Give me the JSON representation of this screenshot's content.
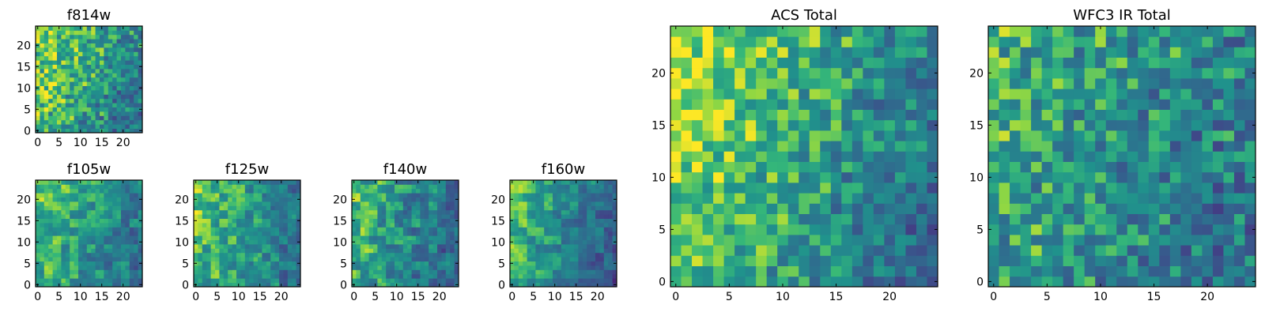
{
  "chart_data": [
    {
      "type": "heatmap",
      "title": "f814w",
      "x_ticks": [
        0,
        5,
        10,
        15,
        20
      ],
      "y_ticks": [
        0,
        5,
        10,
        15,
        20
      ],
      "xlim": [
        -0.5,
        24.5
      ],
      "ylim": [
        -0.5,
        24.5
      ],
      "grid_size": [
        25,
        25
      ],
      "colormap": "viridis",
      "value_range": [
        0,
        1
      ],
      "pattern": {
        "base": 0.78,
        "gx": -0.35,
        "gy": 0.12,
        "noise": 0.42,
        "seed": 11,
        "blocks": 1
      }
    },
    {
      "type": "heatmap",
      "title": "f105w",
      "x_ticks": [
        0,
        5,
        10,
        15,
        20
      ],
      "y_ticks": [
        0,
        5,
        10,
        15,
        20
      ],
      "xlim": [
        -0.5,
        24.5
      ],
      "ylim": [
        -0.5,
        24.5
      ],
      "grid_size": [
        25,
        25
      ],
      "colormap": "viridis",
      "value_range": [
        0,
        1
      ],
      "pattern": {
        "base": 0.74,
        "gx": -0.3,
        "gy": 0.08,
        "noise": 0.32,
        "seed": 23,
        "blocks": 2
      }
    },
    {
      "type": "heatmap",
      "title": "f125w",
      "x_ticks": [
        0,
        5,
        10,
        15,
        20
      ],
      "y_ticks": [
        0,
        5,
        10,
        15,
        20
      ],
      "xlim": [
        -0.5,
        24.5
      ],
      "ylim": [
        -0.5,
        24.5
      ],
      "grid_size": [
        25,
        25
      ],
      "colormap": "viridis",
      "value_range": [
        0,
        1
      ],
      "pattern": {
        "base": 0.76,
        "gx": -0.32,
        "gy": 0.06,
        "noise": 0.34,
        "seed": 37,
        "blocks": 2
      }
    },
    {
      "type": "heatmap",
      "title": "f140w",
      "x_ticks": [
        0,
        5,
        10,
        15,
        20
      ],
      "y_ticks": [
        0,
        5,
        10,
        15,
        20
      ],
      "xlim": [
        -0.5,
        24.5
      ],
      "ylim": [
        -0.5,
        24.5
      ],
      "grid_size": [
        25,
        25
      ],
      "colormap": "viridis",
      "value_range": [
        0,
        1
      ],
      "pattern": {
        "base": 0.72,
        "gx": -0.34,
        "gy": 0.05,
        "noise": 0.36,
        "seed": 41,
        "blocks": 2
      }
    },
    {
      "type": "heatmap",
      "title": "f160w",
      "x_ticks": [
        0,
        5,
        10,
        15,
        20
      ],
      "y_ticks": [
        0,
        5,
        10,
        15,
        20
      ],
      "xlim": [
        -0.5,
        24.5
      ],
      "ylim": [
        -0.5,
        24.5
      ],
      "grid_size": [
        25,
        25
      ],
      "colormap": "viridis",
      "value_range": [
        0,
        1
      ],
      "pattern": {
        "base": 0.7,
        "gx": -0.38,
        "gy": 0.1,
        "noise": 0.3,
        "seed": 53,
        "blocks": 2
      }
    },
    {
      "type": "heatmap",
      "title": "ACS Total",
      "x_ticks": [
        0,
        5,
        10,
        15,
        20
      ],
      "y_ticks": [
        0,
        5,
        10,
        15,
        20
      ],
      "xlim": [
        -0.5,
        24.5
      ],
      "ylim": [
        -0.5,
        24.5
      ],
      "grid_size": [
        25,
        25
      ],
      "colormap": "viridis",
      "value_range": [
        0,
        1
      ],
      "pattern": {
        "base": 0.82,
        "gx": -0.42,
        "gy": 0.14,
        "noise": 0.36,
        "seed": 67,
        "blocks": 1
      }
    },
    {
      "type": "heatmap",
      "title": "WFC3 IR Total",
      "x_ticks": [
        0,
        5,
        10,
        15,
        20
      ],
      "y_ticks": [
        0,
        5,
        10,
        15,
        20
      ],
      "xlim": [
        -0.5,
        24.5
      ],
      "ylim": [
        -0.5,
        24.5
      ],
      "grid_size": [
        25,
        25
      ],
      "colormap": "viridis",
      "value_range": [
        0,
        1
      ],
      "pattern": {
        "base": 0.66,
        "gx": -0.22,
        "gy": 0.08,
        "noise": 0.44,
        "seed": 79,
        "blocks": 1
      }
    }
  ]
}
